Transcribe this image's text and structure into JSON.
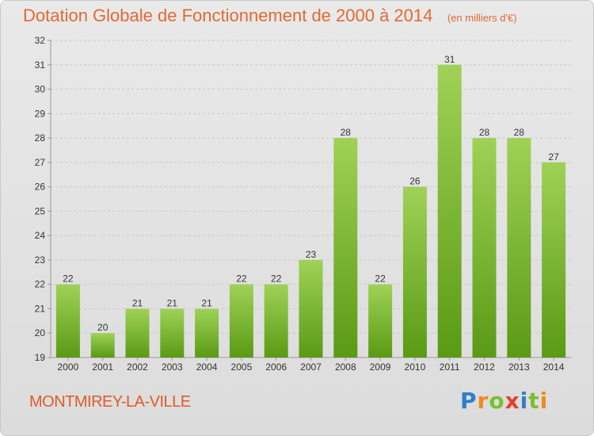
{
  "title": "Dotation Globale de Fonctionnement de 2000 à 2014",
  "unit": "(en milliers d'€)",
  "commune": "MONTMIREY-LA-VILLE",
  "logo": {
    "text": "Proxiti",
    "letters": [
      {
        "ch": "P",
        "color": "#2f7fc9"
      },
      {
        "ch": "r",
        "color": "#f08a1c"
      },
      {
        "ch": "o",
        "color": "#7bbf2e"
      },
      {
        "ch": "x",
        "color": "#e0412a"
      },
      {
        "ch": "i",
        "color": "#2f7fc9"
      },
      {
        "ch": "t",
        "color": "#7bbf2e"
      },
      {
        "ch": "i",
        "color": "#f08a1c"
      }
    ]
  },
  "colors": {
    "title": "#e06a34",
    "bar_top": "#9fd257",
    "bar_bottom": "#5a9a14",
    "grid": "#c9c9c9",
    "axis_text": "#333333"
  },
  "chart_data": {
    "type": "bar",
    "title": "Dotation Globale de Fonctionnement de 2000 à 2014",
    "categories": [
      "2000",
      "2001",
      "2002",
      "2003",
      "2004",
      "2005",
      "2006",
      "2007",
      "2008",
      "2009",
      "2010",
      "2011",
      "2012",
      "2013",
      "2014"
    ],
    "values": [
      22,
      20,
      21,
      21,
      21,
      22,
      22,
      23,
      28,
      22,
      26,
      31,
      28,
      28,
      27
    ],
    "data_labels": [
      "22",
      "20",
      "21",
      "21",
      "21",
      "22",
      "22",
      "23",
      "28",
      "22",
      "26",
      "31",
      "28",
      "28",
      "27"
    ],
    "ylim": [
      19,
      32
    ],
    "yticks": [
      "19",
      "20",
      "21",
      "22",
      "23",
      "24",
      "25",
      "26",
      "27",
      "28",
      "29",
      "30",
      "31",
      "32"
    ],
    "xlabel": "",
    "ylabel": "",
    "grid": true
  }
}
